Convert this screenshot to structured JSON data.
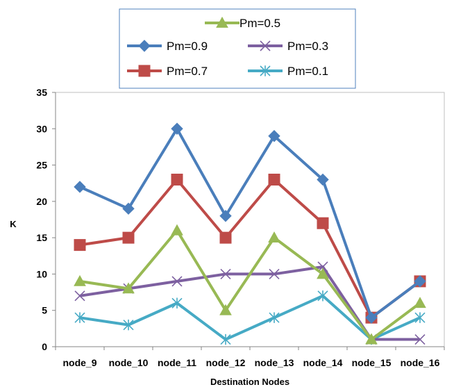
{
  "chart_data": {
    "type": "line",
    "title": "",
    "xlabel": "Destination Nodes",
    "ylabel": "K",
    "ylim": [
      0,
      35
    ],
    "yticks": [
      0,
      5,
      10,
      15,
      20,
      25,
      30,
      35
    ],
    "grid": "none",
    "legend_position": "top-center",
    "categories": [
      "node_9",
      "node_10",
      "node_11",
      "node_12",
      "node_13",
      "node_14",
      "node_15",
      "node_16"
    ],
    "series": [
      {
        "name": "Pm=0.9",
        "color": "#4a7ebb",
        "marker": "diamond",
        "values": [
          22,
          19,
          30,
          18,
          29,
          23,
          4,
          9
        ]
      },
      {
        "name": "Pm=0.7",
        "color": "#be4b48",
        "marker": "square",
        "values": [
          14,
          15,
          23,
          15,
          23,
          17,
          4,
          9
        ]
      },
      {
        "name": "Pm=0.5",
        "color": "#98b954",
        "marker": "triangle",
        "values": [
          9,
          8,
          16,
          5,
          15,
          10,
          1,
          6
        ]
      },
      {
        "name": "Pm=0.3",
        "color": "#7d60a0",
        "marker": "x",
        "values": [
          7,
          8,
          9,
          10,
          10,
          11,
          1,
          1
        ]
      },
      {
        "name": "Pm=0.1",
        "color": "#46aac5",
        "marker": "star",
        "values": [
          4,
          3,
          6,
          1,
          4,
          7,
          1,
          4
        ]
      }
    ]
  }
}
